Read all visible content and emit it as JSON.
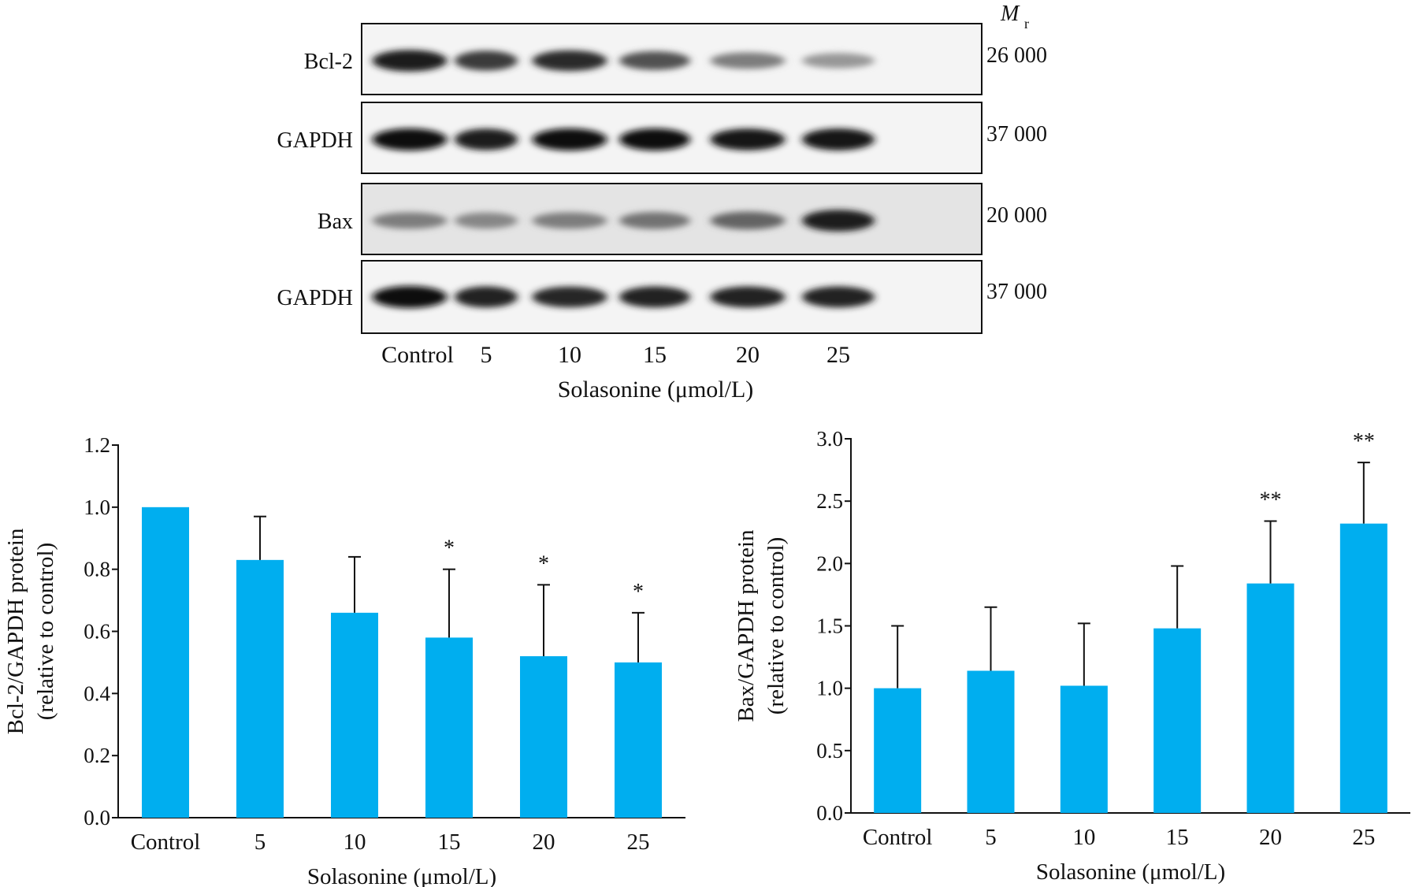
{
  "blot": {
    "mr_label": "M",
    "mr_sub": "r",
    "panels": [
      {
        "name": "Bcl-2",
        "mw": "26 000",
        "intensity": [
          0.95,
          0.8,
          0.88,
          0.7,
          0.5,
          0.38
        ],
        "tilt": [
          0,
          0,
          0,
          0,
          0,
          0
        ]
      },
      {
        "name": "GAPDH",
        "mw": "37 000",
        "intensity": [
          1.0,
          0.95,
          1.0,
          1.0,
          0.96,
          0.98
        ],
        "tilt": [
          0,
          0,
          0,
          0,
          0,
          0
        ]
      },
      {
        "name": "Bax",
        "mw": "20 000",
        "intensity": [
          0.5,
          0.46,
          0.5,
          0.55,
          0.62,
          0.95
        ],
        "tilt": [
          0,
          0,
          0,
          0,
          0,
          0
        ]
      },
      {
        "name": "GAPDH",
        "mw": "37 000",
        "intensity": [
          1.0,
          0.92,
          0.9,
          0.92,
          0.92,
          0.92
        ],
        "tilt": [
          0,
          0,
          0,
          0,
          0,
          0
        ]
      }
    ],
    "lanes": [
      "Control",
      "5",
      "10",
      "15",
      "20",
      "25"
    ],
    "xlabel": "Solasonine (μmol/L)"
  },
  "chart_data": [
    {
      "type": "bar",
      "categories": [
        "Control",
        "5",
        "10",
        "15",
        "20",
        "25"
      ],
      "values": [
        1.0,
        0.83,
        0.66,
        0.58,
        0.52,
        0.5
      ],
      "errors": [
        0.0,
        0.14,
        0.18,
        0.22,
        0.23,
        0.16
      ],
      "significance": [
        "",
        "",
        "",
        "*",
        "*",
        "*"
      ],
      "ylabel_line1": "Bcl-2/GAPDH protein",
      "ylabel_line2": "(relative to control)",
      "xlabel": "Solasonine (μmol/L)",
      "ylim": [
        0,
        1.2
      ],
      "yticks": [
        0.0,
        0.2,
        0.4,
        0.6,
        0.8,
        1.0,
        1.2
      ],
      "ytick_labels": [
        "0.0",
        "0.2",
        "0.4",
        "0.6",
        "0.8",
        "1.0",
        "1.2"
      ],
      "bar_color": "#00AEEF"
    },
    {
      "type": "bar",
      "categories": [
        "Control",
        "5",
        "10",
        "15",
        "20",
        "25"
      ],
      "values": [
        1.0,
        1.14,
        1.02,
        1.48,
        1.84,
        2.32
      ],
      "errors": [
        0.5,
        0.51,
        0.5,
        0.5,
        0.5,
        0.49
      ],
      "significance": [
        "",
        "",
        "",
        "",
        "**",
        "**"
      ],
      "ylabel_line1": "Bax/GAPDH protein",
      "ylabel_line2": "(relative to control)",
      "xlabel": "Solasonine (μmol/L)",
      "ylim": [
        0,
        3.0
      ],
      "yticks": [
        0.0,
        0.5,
        1.0,
        1.5,
        2.0,
        2.5,
        3.0
      ],
      "ytick_labels": [
        "0.0",
        "0.5",
        "1.0",
        "1.5",
        "2.0",
        "2.5",
        "3.0"
      ],
      "bar_color": "#00AEEF"
    }
  ]
}
